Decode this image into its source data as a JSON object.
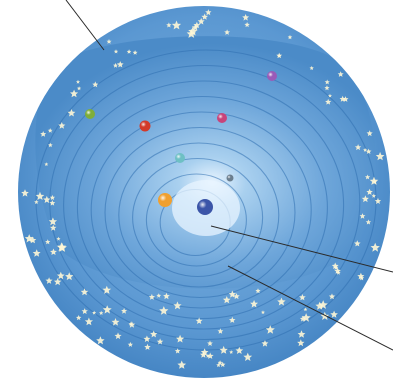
{
  "figure": {
    "kind": "geocentric-cosmos-cutaway",
    "colors": {
      "background": "#ffffff",
      "sphere_outer": "#4d8cc8",
      "sphere_inner": "#7fb3e0",
      "shell_line": "#2f6fb0",
      "center_glow": "#e8f4ff",
      "earth": "#3b55a8",
      "star": "#fff7d6",
      "leader_line": "#2a2a2a"
    },
    "bodies": [
      {
        "name": "earth",
        "color": "#3b55a8"
      },
      {
        "name": "moon",
        "color": "#6b7e8e"
      },
      {
        "name": "mercury",
        "color": "#6ec0c4"
      },
      {
        "name": "sun",
        "color": "#f0a030"
      },
      {
        "name": "venus",
        "color": "#c8447a"
      },
      {
        "name": "mars",
        "color": "#d23a2a"
      },
      {
        "name": "jupiter",
        "color": "#7fae3a"
      },
      {
        "name": "saturn",
        "color": "#9a5bb8"
      }
    ],
    "leaders": [
      "star-sphere-leader",
      "earth-leader",
      "spheres-leader"
    ]
  }
}
